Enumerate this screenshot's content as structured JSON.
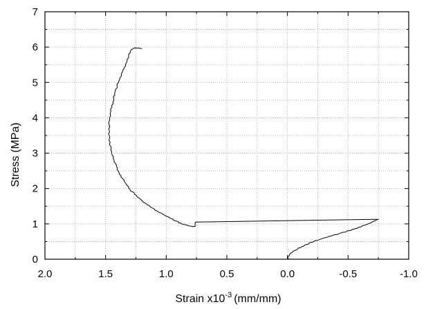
{
  "chart_data": {
    "type": "line",
    "title": "",
    "xlabel": "Strain x10",
    "xlabel_exponent": "-3",
    "xlabel_units": "(mm/mm)",
    "ylabel": "Stress (MPa)",
    "xlim": [
      2.0,
      -1.0
    ],
    "ylim": [
      0,
      7
    ],
    "x_ticks": [
      "2.0",
      "1.5",
      "1.0",
      "0.5",
      "0.0",
      "-0.5",
      "-1.0"
    ],
    "y_ticks": [
      "0",
      "1",
      "2",
      "3",
      "4",
      "5",
      "6",
      "7"
    ],
    "grid": true,
    "legend": "none",
    "colors": {
      "line": "#000000",
      "grid": "#9a9a9a",
      "axis": "#000000"
    },
    "series": [
      {
        "x": [
          1.2,
          1.26,
          1.29,
          1.31,
          1.33,
          1.36,
          1.39,
          1.42,
          1.44,
          1.46,
          1.47,
          1.47,
          1.47,
          1.46,
          1.45,
          1.43,
          1.41,
          1.39,
          1.36,
          1.33,
          1.3,
          1.26,
          1.22,
          1.18,
          1.13,
          1.08,
          1.02,
          0.97,
          0.92,
          0.87,
          0.82,
          0.78,
          0.76,
          0.76,
          -0.75,
          -0.73,
          -0.65,
          -0.55,
          -0.42,
          -0.3,
          -0.2,
          -0.12,
          -0.06,
          -0.02,
          0.0,
          -0.01
        ],
        "y": [
          5.96,
          5.98,
          5.92,
          5.75,
          5.55,
          5.3,
          5.05,
          4.75,
          4.45,
          4.15,
          3.9,
          3.65,
          3.4,
          3.2,
          3.0,
          2.8,
          2.62,
          2.45,
          2.28,
          2.12,
          1.98,
          1.84,
          1.72,
          1.6,
          1.48,
          1.37,
          1.26,
          1.17,
          1.08,
          1.0,
          0.95,
          0.92,
          0.93,
          1.05,
          1.13,
          1.1,
          0.98,
          0.85,
          0.72,
          0.6,
          0.48,
          0.36,
          0.25,
          0.15,
          0.05,
          0.0
        ]
      }
    ]
  }
}
